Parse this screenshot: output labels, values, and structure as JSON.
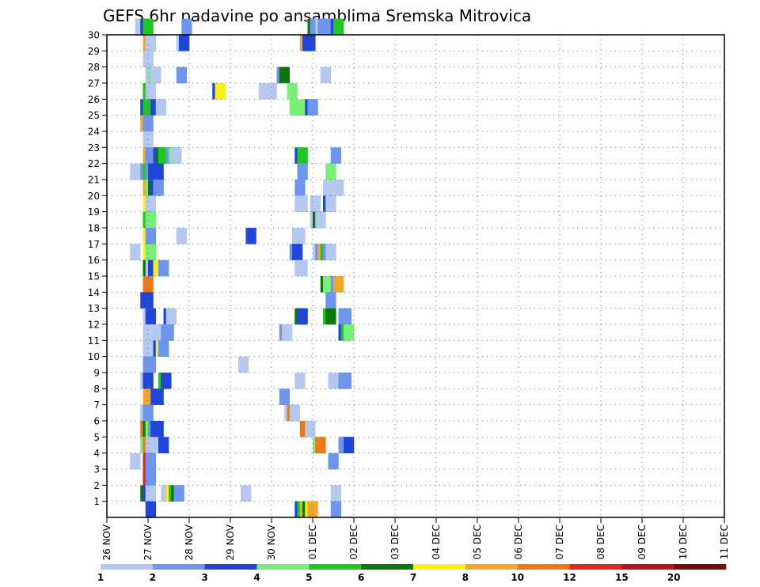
{
  "chart_data": {
    "type": "heatmap",
    "title": "GEFS 6hr padavine po ansamblima Sremska Mitrovica",
    "y_ticks": [
      "1",
      "2",
      "3",
      "4",
      "5",
      "6",
      "7",
      "8",
      "9",
      "10",
      "11",
      "12",
      "13",
      "14",
      "15",
      "16",
      "17",
      "18",
      "19",
      "20",
      "21",
      "22",
      "23",
      "24",
      "25",
      "26",
      "27",
      "28",
      "29",
      "30"
    ],
    "x_ticks": [
      "26 NOV",
      "27 NOV",
      "28 NOV",
      "29 NOV",
      "30 NOV",
      "01 DEC",
      "02 DEC",
      "03 DEC",
      "04 DEC",
      "05 DEC",
      "06 DEC",
      "07 DEC",
      "08 DEC",
      "09 DEC",
      "10 DEC",
      "11 DEC"
    ],
    "grid": true,
    "colorbar": {
      "labels": [
        "1",
        "2",
        "3",
        "4",
        "5",
        "6",
        "7",
        "8",
        "10",
        "12",
        "15",
        "20"
      ],
      "colors": [
        "#b4c8f0",
        "#6e96ee",
        "#1f46d8",
        "#78f078",
        "#1ec81e",
        "#0a780a",
        "#faf014",
        "#f5a628",
        "#f07814",
        "#dc2a1e",
        "#b4141e",
        "#780a0a"
      ]
    },
    "cells": [
      [
        3.75,
        30,
        0
      ],
      [
        4.25,
        30,
        2
      ],
      [
        4.5,
        30,
        4
      ],
      [
        8.25,
        30,
        1
      ],
      [
        20.5,
        30,
        5
      ],
      [
        20.75,
        30,
        1
      ],
      [
        21.25,
        30,
        0
      ],
      [
        21.5,
        30,
        1
      ],
      [
        21.75,
        30,
        1
      ],
      [
        22.75,
        30,
        2
      ],
      [
        23,
        30,
        4
      ],
      [
        4.5,
        29,
        7
      ],
      [
        4.75,
        29,
        0
      ],
      [
        7.75,
        29,
        0
      ],
      [
        8,
        29,
        2
      ],
      [
        19.75,
        29,
        7
      ],
      [
        20,
        29,
        2
      ],
      [
        20.25,
        29,
        2
      ],
      [
        4.5,
        28,
        0
      ],
      [
        4.75,
        27,
        0
      ],
      [
        5,
        27,
        3
      ],
      [
        5.25,
        27,
        0
      ],
      [
        7.75,
        27,
        1
      ],
      [
        17.5,
        27,
        1
      ],
      [
        17.75,
        27,
        5
      ],
      [
        21.75,
        27,
        0
      ],
      [
        4.5,
        26,
        4
      ],
      [
        4.75,
        26,
        0
      ],
      [
        11.25,
        26,
        2
      ],
      [
        11.5,
        26,
        6
      ],
      [
        15.75,
        26,
        0
      ],
      [
        16.25,
        26,
        0
      ],
      [
        16.5,
        26,
        0
      ],
      [
        18.5,
        26,
        3
      ],
      [
        4.25,
        25,
        2
      ],
      [
        4.5,
        25,
        4
      ],
      [
        5.25,
        25,
        2
      ],
      [
        5.75,
        25,
        0
      ],
      [
        18.75,
        25,
        3
      ],
      [
        19.75,
        25,
        3
      ],
      [
        20.25,
        25,
        2
      ],
      [
        20.5,
        25,
        1
      ],
      [
        4.25,
        24,
        7
      ],
      [
        4.5,
        24,
        1
      ],
      [
        4.5,
        23,
        0
      ],
      [
        4.5,
        22,
        7
      ],
      [
        4.75,
        22,
        1
      ],
      [
        5.5,
        22,
        2
      ],
      [
        5.75,
        22,
        5
      ],
      [
        6,
        22,
        4
      ],
      [
        6.5,
        22,
        4
      ],
      [
        6.75,
        22,
        1
      ],
      [
        7,
        22,
        3
      ],
      [
        7.25,
        22,
        0
      ],
      [
        19.25,
        22,
        2
      ],
      [
        19.5,
        22,
        4
      ],
      [
        22.75,
        22,
        1
      ],
      [
        3.25,
        21,
        0
      ],
      [
        4.25,
        21,
        1
      ],
      [
        4.5,
        21,
        4
      ],
      [
        4.75,
        21,
        1
      ],
      [
        5,
        21,
        2
      ],
      [
        5.25,
        21,
        2
      ],
      [
        5.5,
        21,
        2
      ],
      [
        19.5,
        21,
        1
      ],
      [
        22.25,
        21,
        3
      ],
      [
        4.5,
        20,
        7
      ],
      [
        4.75,
        20,
        3
      ],
      [
        5,
        20,
        5
      ],
      [
        5.25,
        20,
        2
      ],
      [
        5.5,
        20,
        1
      ],
      [
        19.25,
        20,
        1
      ],
      [
        22,
        20,
        0
      ],
      [
        22.75,
        20,
        0
      ],
      [
        23,
        20,
        0
      ],
      [
        4.5,
        19,
        6
      ],
      [
        4.75,
        19,
        0
      ],
      [
        19.25,
        19,
        0
      ],
      [
        19.5,
        19,
        0
      ],
      [
        20.75,
        19,
        0
      ],
      [
        22,
        19,
        2
      ],
      [
        22.25,
        19,
        0
      ],
      [
        4.5,
        18,
        4
      ],
      [
        4.75,
        18,
        3
      ],
      [
        20.75,
        18,
        0
      ],
      [
        21,
        18,
        5
      ],
      [
        21.25,
        18,
        0
      ],
      [
        4.5,
        17,
        6
      ],
      [
        4.75,
        17,
        1
      ],
      [
        7.75,
        17,
        0
      ],
      [
        14.5,
        17,
        2
      ],
      [
        19,
        17,
        0
      ],
      [
        19.25,
        17,
        0
      ],
      [
        3.25,
        16,
        0
      ],
      [
        4.5,
        16,
        6
      ],
      [
        4.75,
        16,
        3
      ],
      [
        18.75,
        16,
        1
      ],
      [
        19,
        16,
        2
      ],
      [
        21,
        16,
        0
      ],
      [
        21.25,
        16,
        1
      ],
      [
        21.5,
        16,
        7
      ],
      [
        21.75,
        16,
        4
      ],
      [
        22,
        16,
        1
      ],
      [
        22.25,
        16,
        0
      ],
      [
        4.5,
        15,
        5
      ],
      [
        4.75,
        15,
        0
      ],
      [
        5,
        15,
        2
      ],
      [
        5.5,
        15,
        6
      ],
      [
        5.75,
        15,
        6
      ],
      [
        6,
        15,
        1
      ],
      [
        19.25,
        15,
        0
      ],
      [
        19.5,
        15,
        0
      ],
      [
        4.5,
        14,
        8
      ],
      [
        21.75,
        14,
        5
      ],
      [
        22,
        14,
        3
      ],
      [
        22.75,
        14,
        1
      ],
      [
        23,
        14,
        7
      ],
      [
        4.25,
        13,
        2
      ],
      [
        4.5,
        13,
        2
      ],
      [
        22.25,
        13,
        1
      ],
      [
        4.5,
        12,
        0
      ],
      [
        4.75,
        12,
        2
      ],
      [
        6.5,
        12,
        2
      ],
      [
        6.75,
        12,
        0
      ],
      [
        19.25,
        12,
        5
      ],
      [
        19.5,
        12,
        2
      ],
      [
        22,
        12,
        4
      ],
      [
        22.25,
        12,
        5
      ],
      [
        23.5,
        12,
        1
      ],
      [
        23.75,
        12,
        1
      ],
      [
        4.5,
        11,
        0
      ],
      [
        4.75,
        11,
        0
      ],
      [
        5,
        11,
        0
      ],
      [
        6,
        11,
        0
      ],
      [
        6.25,
        11,
        1
      ],
      [
        6.5,
        11,
        1
      ],
      [
        17.75,
        11,
        1
      ],
      [
        18,
        11,
        0
      ],
      [
        23.5,
        11,
        2
      ],
      [
        23.75,
        11,
        4
      ],
      [
        24,
        11,
        3
      ],
      [
        4.5,
        10,
        0
      ],
      [
        5.5,
        10,
        2
      ],
      [
        5.75,
        10,
        6
      ],
      [
        6,
        10,
        1
      ],
      [
        4.5,
        9,
        1
      ],
      [
        4.75,
        9,
        1
      ],
      [
        13.75,
        9,
        0
      ],
      [
        4.25,
        8,
        0
      ],
      [
        4.5,
        8,
        2
      ],
      [
        6,
        8,
        4
      ],
      [
        6.25,
        8,
        2
      ],
      [
        19.25,
        8,
        0
      ],
      [
        22.5,
        8,
        0
      ],
      [
        23.5,
        8,
        1
      ],
      [
        23.75,
        8,
        1
      ],
      [
        4.5,
        7,
        7
      ],
      [
        5.25,
        7,
        2
      ],
      [
        5.5,
        7,
        2
      ],
      [
        17.75,
        7,
        1
      ],
      [
        4.25,
        6,
        0
      ],
      [
        4.5,
        6,
        1
      ],
      [
        18.25,
        6,
        0
      ],
      [
        18.5,
        6,
        8
      ],
      [
        18.75,
        6,
        0
      ],
      [
        4.25,
        5,
        8
      ],
      [
        4.5,
        5,
        5
      ],
      [
        4.75,
        5,
        3
      ],
      [
        5,
        5,
        1
      ],
      [
        5.25,
        5,
        2
      ],
      [
        5.5,
        5,
        2
      ],
      [
        19.75,
        5,
        8
      ],
      [
        20.25,
        5,
        0
      ],
      [
        4.25,
        4,
        3
      ],
      [
        4.5,
        4,
        8
      ],
      [
        4.75,
        4,
        0
      ],
      [
        5.75,
        4,
        0
      ],
      [
        6,
        4,
        2
      ],
      [
        21,
        4,
        3
      ],
      [
        21.25,
        4,
        8
      ],
      [
        23.5,
        4,
        1
      ],
      [
        23.75,
        4,
        1
      ],
      [
        24,
        4,
        2
      ],
      [
        3.25,
        3,
        0
      ],
      [
        4.5,
        3,
        9
      ],
      [
        4.75,
        3,
        1
      ],
      [
        22.5,
        3,
        1
      ],
      [
        4.5,
        2,
        9
      ],
      [
        4.75,
        2,
        1
      ],
      [
        4.25,
        1,
        5
      ],
      [
        4.5,
        1,
        2
      ],
      [
        4.75,
        1,
        0
      ],
      [
        6.25,
        1,
        0
      ],
      [
        6.5,
        1,
        0
      ],
      [
        6.75,
        1,
        6
      ],
      [
        7,
        1,
        4
      ],
      [
        7.25,
        1,
        5
      ],
      [
        7.5,
        1,
        1
      ],
      [
        14,
        1,
        0
      ],
      [
        22.75,
        1,
        0
      ],
      [
        4.75,
        0,
        2
      ],
      [
        19.25,
        0,
        2
      ],
      [
        19.5,
        0,
        4
      ],
      [
        19.75,
        0,
        7
      ],
      [
        20,
        0,
        5
      ],
      [
        20.25,
        0,
        6
      ],
      [
        20.5,
        0,
        7
      ],
      [
        22.75,
        0,
        1
      ]
    ]
  }
}
